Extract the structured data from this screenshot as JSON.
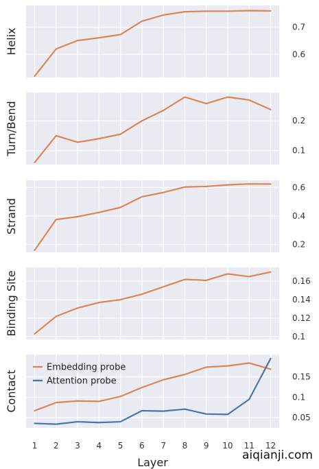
{
  "chart_data": [
    {
      "type": "line",
      "ylabel": "Helix",
      "x": [
        1,
        2,
        3,
        4,
        5,
        6,
        7,
        8,
        9,
        10,
        11,
        12
      ],
      "ylim": [
        0.515,
        0.78
      ],
      "yticks": [
        0.6,
        0.7
      ],
      "series": [
        {
          "name": "Embedding probe",
          "color": "#dd8452",
          "values": [
            0.52,
            0.62,
            0.651,
            0.661,
            0.673,
            0.722,
            0.745,
            0.757,
            0.759,
            0.759,
            0.761,
            0.76
          ]
        }
      ]
    },
    {
      "type": "line",
      "ylabel": "Turn/Bend",
      "x": [
        1,
        2,
        3,
        4,
        5,
        6,
        7,
        8,
        9,
        10,
        11,
        12
      ],
      "ylim": [
        0.053,
        0.295
      ],
      "yticks": [
        0.1,
        0.2
      ],
      "series": [
        {
          "name": "Embedding probe",
          "color": "#dd8452",
          "values": [
            0.06,
            0.15,
            0.128,
            0.14,
            0.155,
            0.2,
            0.235,
            0.28,
            0.258,
            0.28,
            0.27,
            0.238
          ]
        }
      ]
    },
    {
      "type": "line",
      "ylabel": "Strand",
      "x": [
        1,
        2,
        3,
        4,
        5,
        6,
        7,
        8,
        9,
        10,
        11,
        12
      ],
      "ylim": [
        0.145,
        0.65
      ],
      "yticks": [
        0.2,
        0.4,
        0.6
      ],
      "series": [
        {
          "name": "Embedding probe",
          "color": "#dd8452",
          "values": [
            0.16,
            0.375,
            0.395,
            0.425,
            0.46,
            0.535,
            0.565,
            0.603,
            0.607,
            0.618,
            0.625,
            0.624
          ]
        }
      ]
    },
    {
      "type": "line",
      "ylabel": "Binding Site",
      "x": [
        1,
        2,
        3,
        4,
        5,
        6,
        7,
        8,
        9,
        10,
        11,
        12
      ],
      "ylim": [
        0.097,
        0.175
      ],
      "yticks": [
        0.1,
        0.12,
        0.14,
        0.16
      ],
      "series": [
        {
          "name": "Embedding probe",
          "color": "#dd8452",
          "values": [
            0.103,
            0.122,
            0.131,
            0.137,
            0.14,
            0.146,
            0.154,
            0.162,
            0.161,
            0.168,
            0.165,
            0.17
          ]
        }
      ]
    },
    {
      "type": "line",
      "ylabel": "Contact",
      "xlabel": "Layer",
      "x": [
        1,
        2,
        3,
        4,
        5,
        6,
        7,
        8,
        9,
        10,
        11,
        12
      ],
      "xticks": [
        1,
        2,
        3,
        4,
        5,
        6,
        7,
        8,
        9,
        10,
        11,
        12
      ],
      "ylim": [
        0.025,
        0.205
      ],
      "yticks": [
        0.05,
        0.1,
        0.15
      ],
      "legend": "upper left",
      "series": [
        {
          "name": "Embedding probe",
          "color": "#dd8452",
          "values": [
            0.067,
            0.087,
            0.091,
            0.09,
            0.102,
            0.124,
            0.143,
            0.156,
            0.174,
            0.177,
            0.184,
            0.169
          ]
        },
        {
          "name": "Attention probe",
          "color": "#4c72b0",
          "values": [
            0.036,
            0.034,
            0.04,
            0.038,
            0.04,
            0.067,
            0.066,
            0.071,
            0.059,
            0.058,
            0.095,
            0.195
          ]
        }
      ]
    }
  ],
  "watermark": "aiqianji.com"
}
